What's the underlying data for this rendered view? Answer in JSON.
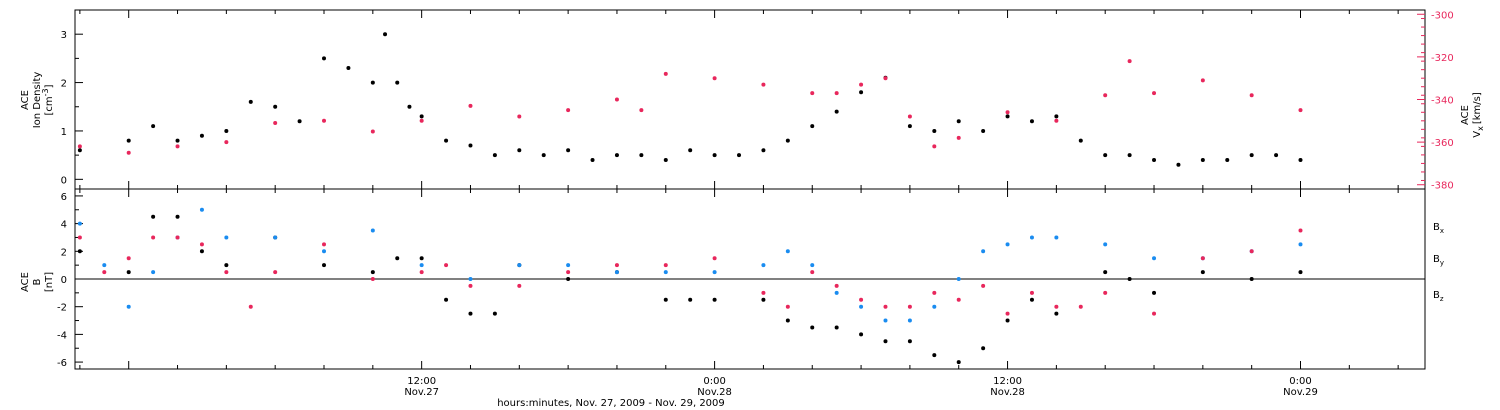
{
  "figure": {
    "x_axis_title": "hours:minutes, Nov. 27, 2009 - Nov. 29, 2009",
    "x_tick_labels": [
      {
        "time": "12:00",
        "date": "Nov.27",
        "hours": 12
      },
      {
        "time": "0:00",
        "date": "Nov.28",
        "hours": 24
      },
      {
        "time": "12:00",
        "date": "Nov.28",
        "hours": 36
      },
      {
        "time": "0:00",
        "date": "Nov.29",
        "hours": 48
      }
    ]
  },
  "colors": {
    "black": "#000000",
    "pink": "#e8275c",
    "blue": "#1a8cf0"
  },
  "chart_data": [
    {
      "type": "scatter",
      "panel": "top",
      "ylabel_left": [
        "ACE",
        "Ion Density",
        "[cm",
        "-3",
        "]"
      ],
      "ylabel_right": [
        "ACE",
        "V",
        "x",
        "[km/s]"
      ],
      "x_unit": "hours since Nov. 27, 2009 0:00",
      "xlim": [
        -2.2,
        53.1
      ],
      "ylim_left": [
        -0.2,
        3.5
      ],
      "ylim_right": [
        -382,
        -298
      ],
      "left_ticks": [
        "0",
        "1",
        "2",
        "3"
      ],
      "right_ticks": [
        "-300",
        "-320",
        "-340",
        "-360",
        "-380"
      ],
      "series": [
        {
          "name": "Ion Density",
          "axis": "left",
          "color": "#000000",
          "x": [
            -2.0,
            0.0,
            1.0,
            2.0,
            3.0,
            4.0,
            5.0,
            6.0,
            7.0,
            8.0,
            9.0,
            10.0,
            10.5,
            11.0,
            11.5,
            12.0,
            13.0,
            14.0,
            15.0,
            16.0,
            17.0,
            18.0,
            19.0,
            20.0,
            21.0,
            22.0,
            23.0,
            24.0,
            25.0,
            26.0,
            27.0,
            28.0,
            29.0,
            30.0,
            31.0,
            32.0,
            33.0,
            34.0,
            35.0,
            36.0,
            37.0,
            38.0,
            39.0,
            40.0,
            41.0,
            42.0,
            43.0,
            44.0,
            45.0,
            46.0,
            47.0,
            48.0
          ],
          "y": [
            0.6,
            0.8,
            1.1,
            0.8,
            0.9,
            1.0,
            1.6,
            1.5,
            1.2,
            2.5,
            2.3,
            2.0,
            3.0,
            2.0,
            1.5,
            1.3,
            0.8,
            0.7,
            0.5,
            0.6,
            0.5,
            0.6,
            0.4,
            0.5,
            0.5,
            0.4,
            0.6,
            0.5,
            0.5,
            0.6,
            0.8,
            1.1,
            1.4,
            1.8,
            2.1,
            1.1,
            1.0,
            1.2,
            1.0,
            1.3,
            1.2,
            1.3,
            0.8,
            0.5,
            0.5,
            0.4,
            0.3,
            0.4,
            0.4,
            0.5,
            0.5,
            0.4
          ]
        },
        {
          "name": "Vx",
          "axis": "right",
          "color": "#e8275c",
          "x": [
            -2.0,
            0.0,
            2.0,
            4.0,
            6.0,
            8.0,
            10.0,
            12.0,
            14.0,
            16.0,
            18.0,
            20.0,
            21.0,
            22.0,
            24.0,
            26.0,
            28.0,
            29.0,
            30.0,
            31.0,
            32.0,
            33.0,
            34.0,
            36.0,
            38.0,
            40.0,
            41.0,
            42.0,
            44.0,
            46.0,
            48.0
          ],
          "y": [
            -362,
            -365,
            -362,
            -360,
            -351,
            -350,
            -355,
            -350,
            -343,
            -348,
            -345,
            -340,
            -345,
            -328,
            -330,
            -333,
            -337,
            -337,
            -333,
            -330,
            -348,
            -362,
            -358,
            -346,
            -350,
            -338,
            -322,
            -337,
            -331,
            -338,
            -345
          ]
        }
      ]
    },
    {
      "type": "scatter",
      "panel": "bottom",
      "ylabel_left": [
        "ACE",
        "B",
        "[nT]"
      ],
      "x_unit": "hours since Nov. 27, 2009 0:00",
      "xlim": [
        -2.2,
        53.1
      ],
      "ylim": [
        -6.5,
        6.5
      ],
      "left_ticks": [
        "6",
        "4",
        "2",
        "0",
        "-2",
        "-4",
        "-6"
      ],
      "zero_line": true,
      "legend": [
        "Bx",
        "By",
        "Bz"
      ],
      "legend_placement": "right",
      "series": [
        {
          "name": "Bx",
          "color": "#000000",
          "x": [
            -2.0,
            0.0,
            1.0,
            2.0,
            3.0,
            4.0,
            6.0,
            8.0,
            10.0,
            11.0,
            12.0,
            13.0,
            14.0,
            15.0,
            16.0,
            18.0,
            20.0,
            22.0,
            23.0,
            24.0,
            26.0,
            27.0,
            28.0,
            29.0,
            30.0,
            31.0,
            32.0,
            33.0,
            34.0,
            35.0,
            36.0,
            37.0,
            38.0,
            40.0,
            41.0,
            42.0,
            44.0,
            46.0,
            48.0
          ],
          "y": [
            2.0,
            0.5,
            4.5,
            4.5,
            2.0,
            1.0,
            3.0,
            1.0,
            0.5,
            1.5,
            1.5,
            -1.5,
            -2.5,
            -2.5,
            1.0,
            0.0,
            0.5,
            -1.5,
            -1.5,
            -1.5,
            -1.5,
            -3.0,
            -3.5,
            -3.5,
            -4.0,
            -4.5,
            -4.5,
            -5.5,
            -6.0,
            -5.0,
            -3.0,
            -1.5,
            -2.5,
            0.5,
            0.0,
            -1.0,
            0.5,
            0.0,
            0.5
          ]
        },
        {
          "name": "By",
          "color": "#1a8cf0",
          "x": [
            -2.0,
            -1.0,
            0.0,
            1.0,
            2.0,
            3.0,
            4.0,
            6.0,
            8.0,
            10.0,
            12.0,
            14.0,
            16.0,
            18.0,
            20.0,
            22.0,
            24.0,
            26.0,
            27.0,
            28.0,
            29.0,
            30.0,
            31.0,
            32.0,
            33.0,
            34.0,
            35.0,
            36.0,
            37.0,
            38.0,
            40.0,
            42.0,
            44.0,
            46.0,
            48.0
          ],
          "y": [
            4.0,
            1.0,
            -2.0,
            0.5,
            3.0,
            5.0,
            3.0,
            3.0,
            2.0,
            3.5,
            1.0,
            0.0,
            1.0,
            1.0,
            0.5,
            0.5,
            0.5,
            1.0,
            2.0,
            1.0,
            -1.0,
            -2.0,
            -3.0,
            -3.0,
            -2.0,
            0.0,
            2.0,
            2.5,
            3.0,
            3.0,
            2.5,
            1.5,
            1.5,
            2.0,
            2.5
          ]
        },
        {
          "name": "Bz",
          "color": "#e8275c",
          "x": [
            -2.0,
            -1.0,
            0.0,
            1.0,
            2.0,
            3.0,
            4.0,
            5.0,
            6.0,
            8.0,
            10.0,
            12.0,
            13.0,
            14.0,
            16.0,
            18.0,
            20.0,
            22.0,
            24.0,
            26.0,
            27.0,
            28.0,
            29.0,
            30.0,
            31.0,
            32.0,
            33.0,
            34.0,
            35.0,
            36.0,
            37.0,
            38.0,
            39.0,
            40.0,
            42.0,
            44.0,
            46.0,
            48.0
          ],
          "y": [
            3.0,
            0.5,
            1.5,
            3.0,
            3.0,
            2.5,
            0.5,
            -2.0,
            0.5,
            2.5,
            0.0,
            0.5,
            1.0,
            -0.5,
            -0.5,
            0.5,
            1.0,
            1.0,
            1.5,
            -1.0,
            -2.0,
            0.5,
            -0.5,
            -1.5,
            -2.0,
            -2.0,
            -1.0,
            -1.5,
            -0.5,
            -2.5,
            -1.0,
            -2.0,
            -2.0,
            -1.0,
            -2.5,
            1.5,
            2.0,
            3.5
          ]
        }
      ]
    }
  ]
}
